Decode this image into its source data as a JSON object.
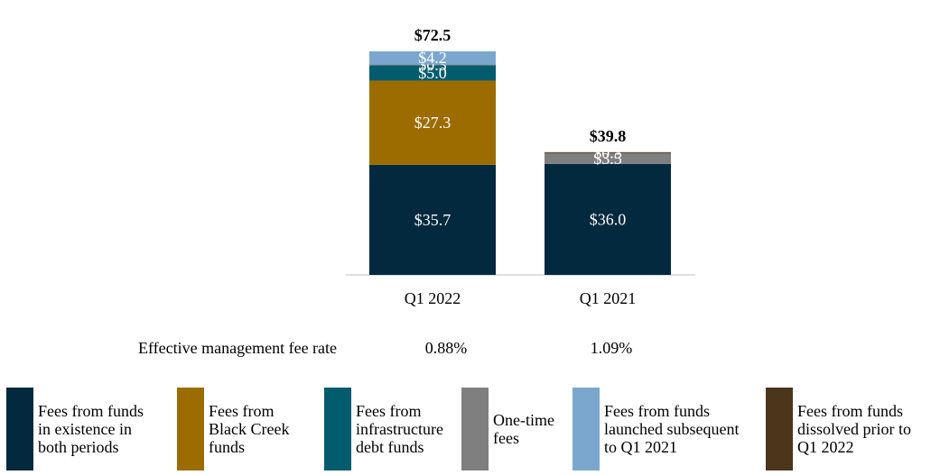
{
  "chart_data": {
    "type": "bar",
    "stacked": true,
    "categories": [
      "Q1 2022",
      "Q1 2021"
    ],
    "series": [
      {
        "name": "Fees from funds in existence in both periods",
        "color": "#03293f",
        "values": [
          35.7,
          36.0
        ],
        "labels": [
          "$35.7",
          "$36.0"
        ]
      },
      {
        "name": "Fees from Black Creek funds",
        "color": "#9c6c00",
        "values": [
          27.3,
          0
        ],
        "labels": [
          "$27.3",
          ""
        ]
      },
      {
        "name": "Fees from infrastructure debt funds",
        "color": "#035c6d",
        "values": [
          5.0,
          0
        ],
        "labels": [
          "$5.0",
          ""
        ]
      },
      {
        "name": "One-time fees",
        "color": "#7f7f7f",
        "values": [
          0.3,
          3.5
        ],
        "labels": [
          "$0.3",
          "$3.5"
        ]
      },
      {
        "name": "Fees from funds launched subsequent to Q1 2021",
        "color": "#7ba7cf",
        "values": [
          4.2,
          0
        ],
        "labels": [
          "$4.2",
          ""
        ]
      },
      {
        "name": "Fees from funds dissolved prior to Q1 2022",
        "color": "#4b361c",
        "values": [
          0,
          0.3
        ],
        "labels": [
          "",
          "$0.3"
        ]
      }
    ],
    "totals": [
      "$72.5",
      "$39.8"
    ],
    "ylim": [
      0,
      76
    ],
    "xlabel": "",
    "ylabel": "",
    "grid": false,
    "legend_position": "bottom"
  },
  "fee_rate": {
    "label": "Effective management fee rate",
    "values": [
      "0.88%",
      "1.09%"
    ]
  },
  "legend": [
    {
      "text": "Fees from funds\nin existence in\nboth periods",
      "color": "#03293f"
    },
    {
      "text": "Fees from\nBlack Creek\nfunds",
      "color": "#9c6c00"
    },
    {
      "text": "Fees from\ninfrastructure\ndebt funds",
      "color": "#035c6d"
    },
    {
      "text": "One-time\nfees",
      "color": "#7f7f7f"
    },
    {
      "text": "Fees from funds\nlaunched subsequent\nto Q1 2021",
      "color": "#7ba7cf"
    },
    {
      "text": "Fees from funds\ndissolved prior to\nQ1 2022",
      "color": "#4b361c"
    }
  ]
}
